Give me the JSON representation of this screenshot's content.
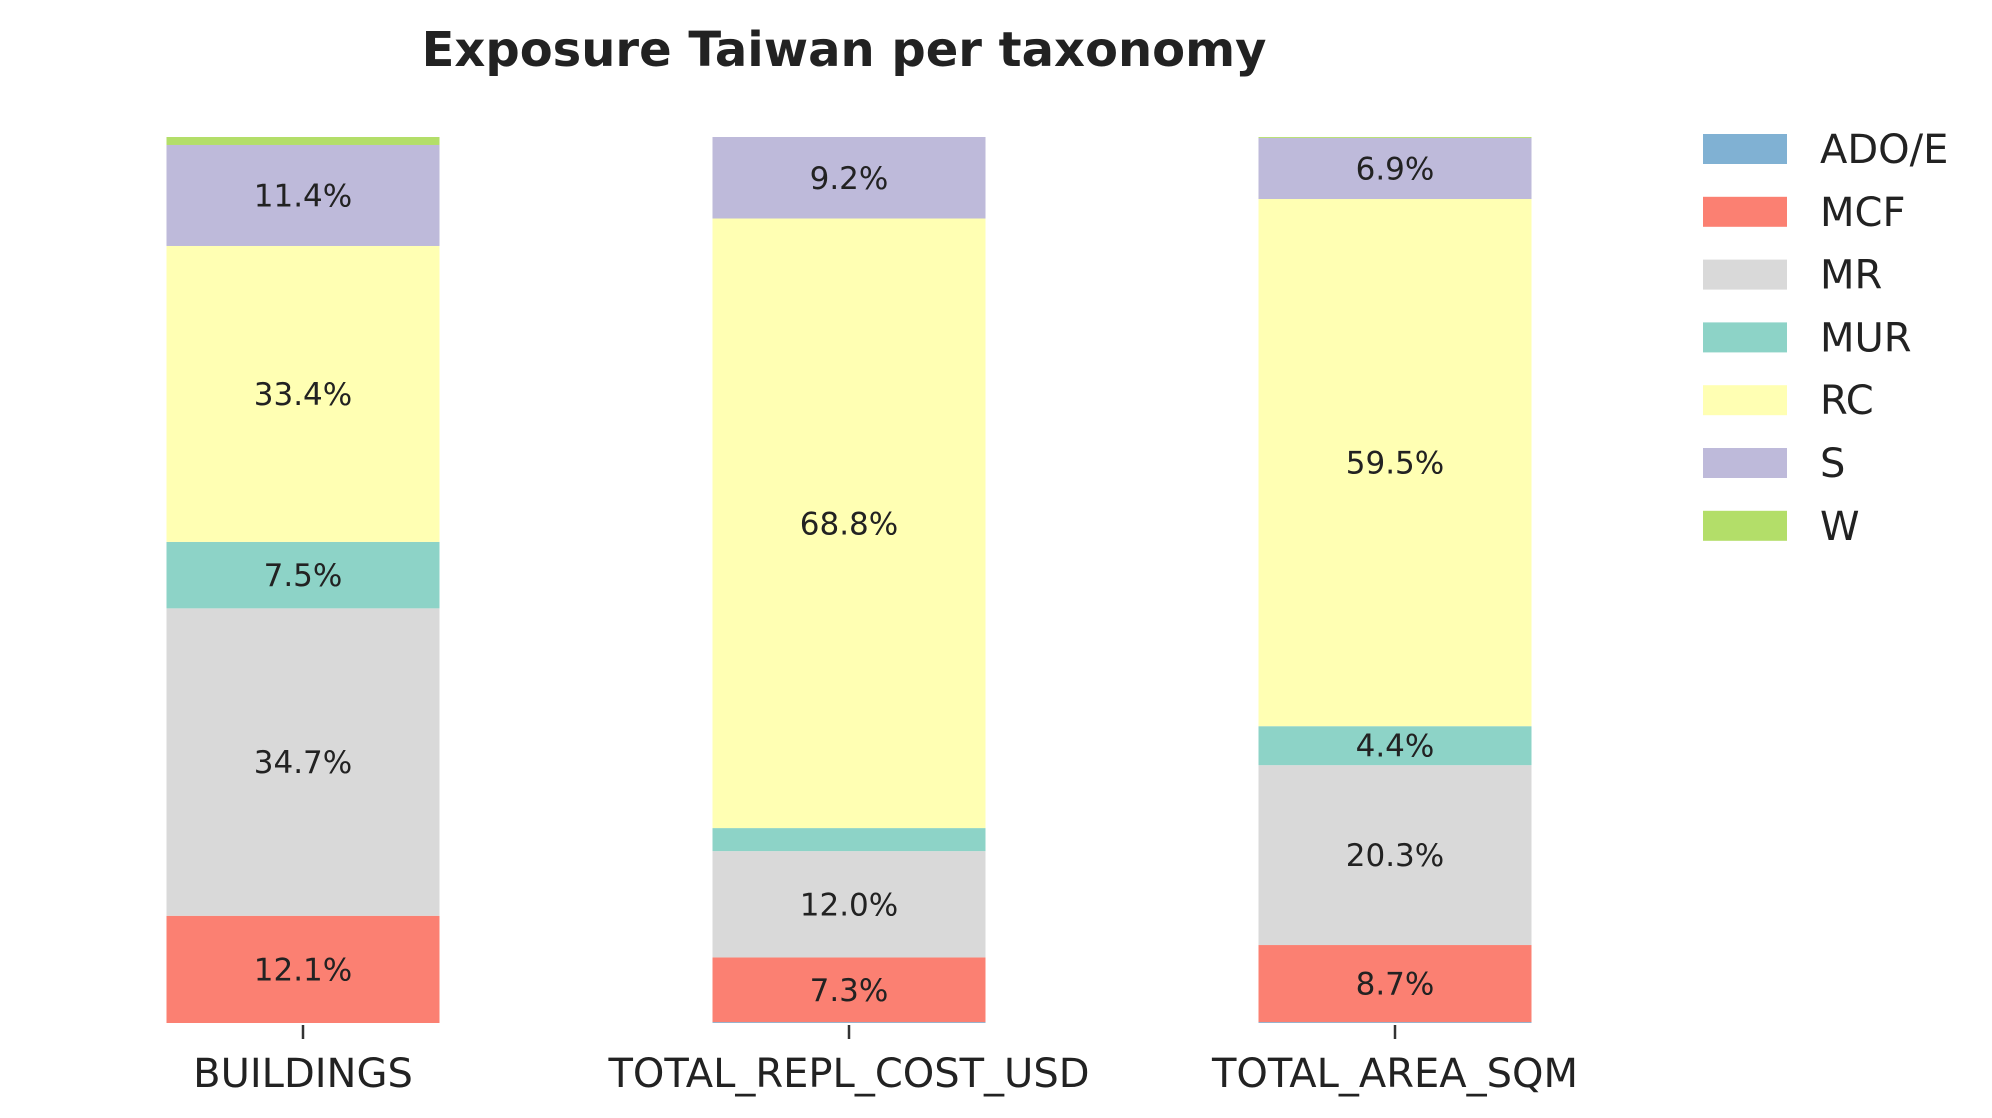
{
  "chart_data": {
    "type": "bar",
    "stacked": true,
    "title": "Exposure Taiwan per taxonomy",
    "xlabel": "",
    "ylabel": "",
    "ylim": [
      0,
      100
    ],
    "grid": false,
    "legend_position": "right",
    "categories": [
      "BUILDINGS",
      "TOTAL_REPL_COST_USD",
      "TOTAL_AREA_SQM"
    ],
    "series": [
      {
        "name": "ADO/E",
        "color": "#80b1d3",
        "values": [
          0.0,
          0.1,
          0.1
        ],
        "labels": [
          "",
          "",
          ""
        ]
      },
      {
        "name": "MCF",
        "color": "#fb8072",
        "values": [
          12.1,
          7.3,
          8.7
        ],
        "labels": [
          "12.1%",
          "7.3%",
          "8.7%"
        ]
      },
      {
        "name": "MR",
        "color": "#d9d9d9",
        "values": [
          34.7,
          12.0,
          20.3
        ],
        "labels": [
          "34.7%",
          "12.0%",
          "20.3%"
        ]
      },
      {
        "name": "MUR",
        "color": "#8dd3c7",
        "values": [
          7.5,
          2.6,
          4.4
        ],
        "labels": [
          "7.5%",
          "",
          "4.4%"
        ]
      },
      {
        "name": "RC",
        "color": "#ffffb3",
        "values": [
          33.4,
          68.8,
          59.5
        ],
        "labels": [
          "33.4%",
          "68.8%",
          "59.5%"
        ]
      },
      {
        "name": "S",
        "color": "#bebada",
        "values": [
          11.4,
          9.2,
          6.9
        ],
        "labels": [
          "11.4%",
          "9.2%",
          "6.9%"
        ]
      },
      {
        "name": "W",
        "color": "#b3de69",
        "values": [
          0.9,
          0.0,
          0.1
        ],
        "labels": [
          "",
          "",
          ""
        ]
      }
    ]
  }
}
